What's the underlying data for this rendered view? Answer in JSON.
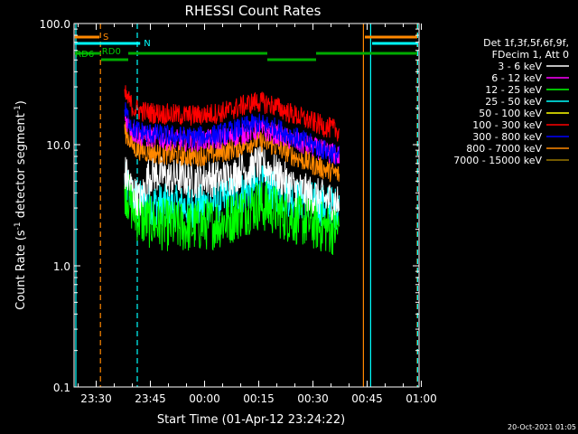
{
  "chart_data": {
    "type": "line",
    "title": "RHESSI Count Rates",
    "xlabel": "Start Time (01-Apr-12 23:24:22)",
    "ylabel_prefix": "Count Rate (s",
    "ylabel_sup": "-1",
    "ylabel_mid": " detector segment",
    "ylabel_sup2": "-1",
    "ylabel_suffix": ")",
    "yscale": "log",
    "ylim": [
      0.1,
      100.0
    ],
    "yticks": [
      {
        "value": 0.1,
        "label": "0.1"
      },
      {
        "value": 1.0,
        "label": "1.0"
      },
      {
        "value": 10.0,
        "label": "10.0"
      },
      {
        "value": 100.0,
        "label": "100.0"
      }
    ],
    "xlim_minutes": [
      -0.5,
      95.0
    ],
    "xticks": [
      {
        "minute": 5.63,
        "label": "23:30"
      },
      {
        "minute": 20.63,
        "label": "23:45"
      },
      {
        "minute": 35.63,
        "label": "00:00"
      },
      {
        "minute": 50.63,
        "label": "00:15"
      },
      {
        "minute": 65.63,
        "label": "00:30"
      },
      {
        "minute": 80.63,
        "label": "00:45"
      },
      {
        "minute": 95.63,
        "label": "01:00"
      }
    ],
    "legend_header": [
      "Det 1f,3f,5f,6f,9f,",
      "FDecim 1, Att 0"
    ],
    "legend_position": "right",
    "series": [
      {
        "name": "3 - 6 keV",
        "color": "#ffffff",
        "x": [
          13.5,
          16,
          18,
          20,
          22,
          24,
          26,
          28,
          30,
          32,
          34,
          36,
          38,
          40,
          42,
          44,
          46,
          48,
          50,
          52,
          54,
          56,
          58,
          60,
          62,
          64,
          66,
          68,
          70,
          72,
          73
        ],
        "y": [
          6.0,
          4.0,
          3.4,
          5.5,
          5.8,
          5.6,
          5.2,
          5.4,
          5.3,
          5.1,
          5.2,
          5.4,
          5.3,
          5.2,
          5.4,
          5.6,
          6.4,
          6.0,
          7.0,
          6.6,
          6.2,
          5.6,
          5.0,
          4.5,
          4.2,
          4.0,
          3.8,
          3.6,
          3.5,
          3.4,
          3.2
        ]
      },
      {
        "name": "6 - 12 keV",
        "color": "#ff00ff",
        "x": [
          13.5,
          16,
          18,
          20,
          22,
          24,
          26,
          28,
          30,
          32,
          34,
          36,
          38,
          40,
          42,
          44,
          46,
          48,
          50,
          52,
          54,
          56,
          58,
          60,
          62,
          64,
          66,
          68,
          70,
          72,
          73
        ],
        "y": [
          17.0,
          12.5,
          11.8,
          11.5,
          11.4,
          11.2,
          11.0,
          10.9,
          10.8,
          10.7,
          10.8,
          10.9,
          11.0,
          11.2,
          11.4,
          11.8,
          12.2,
          12.8,
          13.2,
          13.0,
          12.6,
          12.0,
          11.4,
          10.8,
          10.2,
          9.8,
          9.4,
          9.0,
          8.6,
          8.3,
          8.0
        ]
      },
      {
        "name": "12 - 25 keV",
        "color": "#00ff00",
        "x": [
          13.5,
          16,
          18,
          20,
          22,
          24,
          26,
          28,
          30,
          32,
          34,
          36,
          38,
          40,
          42,
          44,
          46,
          48,
          50,
          52,
          54,
          56,
          58,
          60,
          62,
          64,
          66,
          68,
          70,
          72,
          73
        ],
        "y": [
          4.5,
          2.8,
          2.4,
          2.3,
          2.25,
          2.2,
          2.15,
          2.1,
          2.1,
          2.1,
          2.15,
          2.2,
          2.25,
          2.3,
          2.4,
          2.6,
          2.8,
          3.0,
          3.2,
          3.1,
          3.0,
          2.8,
          2.6,
          2.5,
          2.4,
          2.3,
          2.2,
          2.1,
          2.05,
          2.0,
          2.0
        ]
      },
      {
        "name": "25 - 50 keV",
        "color": "#00ffff",
        "x": [
          13.5,
          16,
          18,
          20,
          22,
          24,
          26,
          28,
          30,
          32,
          34,
          36,
          38,
          40,
          42,
          44,
          46,
          48,
          50,
          52,
          54,
          56,
          58,
          60,
          62,
          64,
          66,
          68,
          70,
          72,
          73
        ],
        "y": [
          5.0,
          3.6,
          3.4,
          3.3,
          3.25,
          3.2,
          3.15,
          3.1,
          3.1,
          3.1,
          3.15,
          3.2,
          3.3,
          3.4,
          3.6,
          3.8,
          4.0,
          4.3,
          4.6,
          4.5,
          4.3,
          4.1,
          3.9,
          3.7,
          3.5,
          3.4,
          3.3,
          3.2,
          3.1,
          3.0,
          3.0
        ]
      },
      {
        "name": "50 - 100 keV",
        "color": "#ffff00",
        "x": [],
        "y": []
      },
      {
        "name": "100 - 300 keV",
        "color": "#ff0000",
        "x": [
          13.5,
          16,
          18,
          20,
          22,
          24,
          26,
          28,
          30,
          32,
          34,
          36,
          38,
          40,
          42,
          44,
          46,
          48,
          50,
          52,
          54,
          56,
          58,
          60,
          62,
          64,
          66,
          68,
          70,
          72,
          73
        ],
        "y": [
          26.0,
          20.0,
          19.0,
          18.5,
          18.2,
          18.0,
          17.8,
          17.6,
          17.5,
          17.4,
          17.5,
          17.7,
          18.0,
          18.4,
          19.0,
          19.8,
          20.8,
          21.8,
          22.6,
          22.2,
          21.4,
          20.2,
          19.0,
          17.8,
          16.8,
          16.0,
          15.2,
          14.4,
          13.8,
          13.2,
          12.8
        ]
      },
      {
        "name": "300 - 800 keV",
        "color": "#0000ff",
        "x": [
          13.5,
          16,
          18,
          20,
          22,
          24,
          26,
          28,
          30,
          32,
          34,
          36,
          38,
          40,
          42,
          44,
          46,
          48,
          50,
          52,
          54,
          56,
          58,
          60,
          62,
          64,
          66,
          68,
          70,
          72,
          73
        ],
        "y": [
          19.0,
          13.5,
          12.8,
          12.4,
          12.2,
          12.0,
          11.8,
          11.7,
          11.6,
          11.5,
          11.6,
          11.8,
          12.0,
          12.3,
          12.7,
          13.2,
          13.8,
          14.4,
          15.0,
          14.7,
          14.1,
          13.4,
          12.6,
          11.8,
          11.0,
          10.4,
          9.8,
          9.2,
          8.7,
          8.3,
          8.0
        ]
      },
      {
        "name": "800 - 7000 keV",
        "color": "#ff8800",
        "x": [
          13.5,
          16,
          18,
          20,
          22,
          24,
          26,
          28,
          30,
          32,
          34,
          36,
          38,
          40,
          42,
          44,
          46,
          48,
          50,
          52,
          54,
          56,
          58,
          60,
          62,
          64,
          66,
          68,
          70,
          72,
          73
        ],
        "y": [
          13.0,
          9.5,
          9.0,
          8.7,
          8.5,
          8.4,
          8.3,
          8.2,
          8.1,
          8.0,
          8.1,
          8.2,
          8.4,
          8.6,
          8.9,
          9.3,
          9.8,
          10.3,
          10.8,
          10.5,
          10.0,
          9.4,
          8.8,
          8.2,
          7.6,
          7.2,
          6.8,
          6.4,
          6.1,
          5.8,
          5.6
        ]
      },
      {
        "name": "7000 - 15000 keV",
        "color": "#997700",
        "x": [],
        "y": []
      }
    ],
    "state_bars": [
      {
        "label": "S",
        "color": "#ff8800",
        "segments": [
          [
            -0.3,
            6.5
          ],
          [
            80.0,
            94.5
          ]
        ]
      },
      {
        "label": "N",
        "color": "#00ffff",
        "segments": [
          [
            -0.3,
            17.8
          ],
          [
            82.0,
            94.5
          ]
        ]
      },
      {
        "label": "RD0",
        "color": "#00aa00",
        "segments": [
          [
            14.5,
            53.0
          ],
          [
            66.5,
            94.5
          ]
        ]
      },
      {
        "label": "",
        "color": "#00aa00",
        "segments": [
          [
            53.0,
            66.5
          ]
        ]
      },
      {
        "label": "",
        "color": "#00aa00",
        "segments": [
          [
            7.0,
            14.5
          ]
        ]
      },
      {
        "label": "RD6",
        "color": "#00aa00",
        "segments": [
          [
            -0.3,
            7.0
          ]
        ]
      }
    ],
    "vertical_markers": [
      {
        "minute": 0.0,
        "color": "#00ffff",
        "style": "solid"
      },
      {
        "minute": 6.8,
        "color": "#ff8800",
        "style": "dashed"
      },
      {
        "minute": 17.0,
        "color": "#00ffff",
        "style": "dashed"
      },
      {
        "minute": 79.6,
        "color": "#ff8800",
        "style": "solid"
      },
      {
        "minute": 81.6,
        "color": "#00ffff",
        "style": "solid"
      },
      {
        "minute": 94.5,
        "color": "#ff8800",
        "style": "dashed"
      },
      {
        "minute": 94.6,
        "color": "#00ffff",
        "style": "dashed"
      }
    ]
  },
  "footer_timestamp": "20-Oct-2021 01:05"
}
